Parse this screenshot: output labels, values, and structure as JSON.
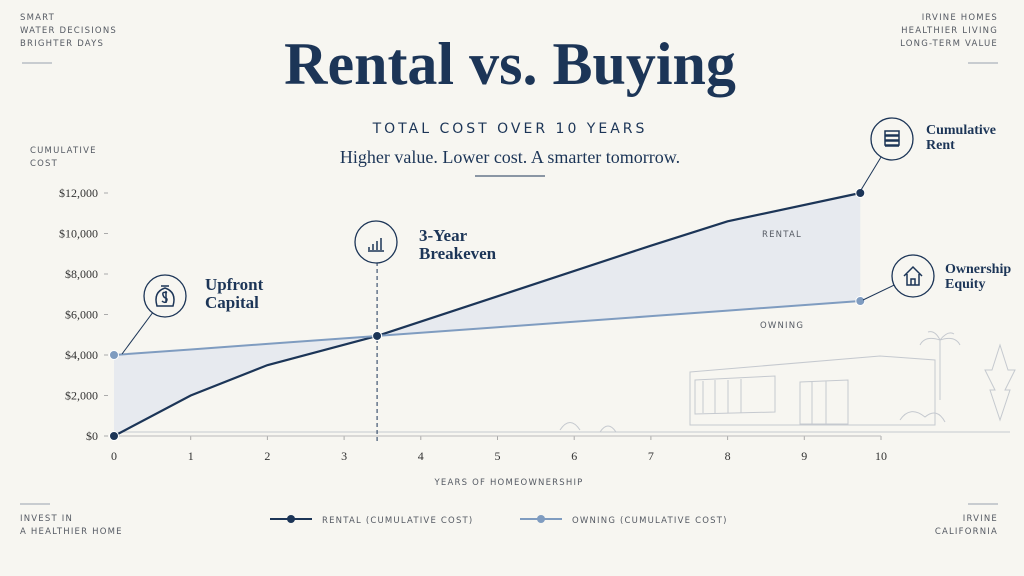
{
  "chart_data": {
    "type": "line",
    "title": "Rental vs. Buying",
    "subtitle": "TOTAL COST OVER 10 YEARS",
    "tagline": "Higher value. Lower cost. A smarter tomorrow.",
    "corners": {
      "top_left": [
        "SMART",
        "WATER DECISIONS",
        "BRIGHTER DAYS"
      ],
      "top_right": [
        "IRVINE HOMES",
        "HEALTHIER LIVING",
        "LONG-TERM VALUE"
      ],
      "bottom_left": [
        "INVEST IN",
        "A HEALTHIER HOME"
      ],
      "bottom_right": [
        "IRVINE",
        "CALIFORNIA"
      ]
    },
    "y_label": [
      "CUMULATIVE",
      "COST"
    ],
    "x_label": "YEARS OF HOMEOWNERSHIP",
    "x": [
      0,
      1,
      2,
      3.43,
      5,
      7,
      8,
      9.73
    ],
    "series": [
      {
        "name": "RENTAL (CUMULATIVE COST)",
        "color": "#1c3557",
        "values": [
          0,
          2000,
          3500,
          4940,
          6900,
          9400,
          10600,
          12000
        ]
      },
      {
        "name": "OWNING (CUMULATIVE COST)",
        "color": "#7f9cc0",
        "values": [
          4000,
          4274,
          4548,
          4940,
          5370,
          5918,
          6192,
          6667
        ]
      }
    ],
    "annotations": [
      {
        "lines": [
          "Upfront",
          "Capital"
        ]
      },
      {
        "lines": [
          "3-Year",
          "Breakeven"
        ]
      },
      {
        "lines": [
          "Cumulative",
          "Rent"
        ]
      },
      {
        "lines": [
          "Ownership",
          "Equity"
        ]
      },
      {
        "lines": [
          "RENTAL"
        ]
      },
      {
        "lines": [
          "OWNING"
        ]
      }
    ],
    "xlim": [
      0,
      10
    ],
    "xticks": [
      0,
      1,
      2,
      3,
      4,
      5,
      6,
      7,
      8,
      9,
      10
    ],
    "ylim": [
      0,
      12000
    ],
    "yticks": [
      {
        "value": 0,
        "label": "$0"
      },
      {
        "value": 2000,
        "label": "$2,000"
      },
      {
        "value": 4000,
        "label": "$4,000"
      },
      {
        "value": 6000,
        "label": "$6,000"
      },
      {
        "value": 8000,
        "label": "$8,000"
      },
      {
        "value": 10000,
        "label": "$10,000"
      },
      {
        "value": 12000,
        "label": "$12,000"
      }
    ],
    "grid": false
  }
}
